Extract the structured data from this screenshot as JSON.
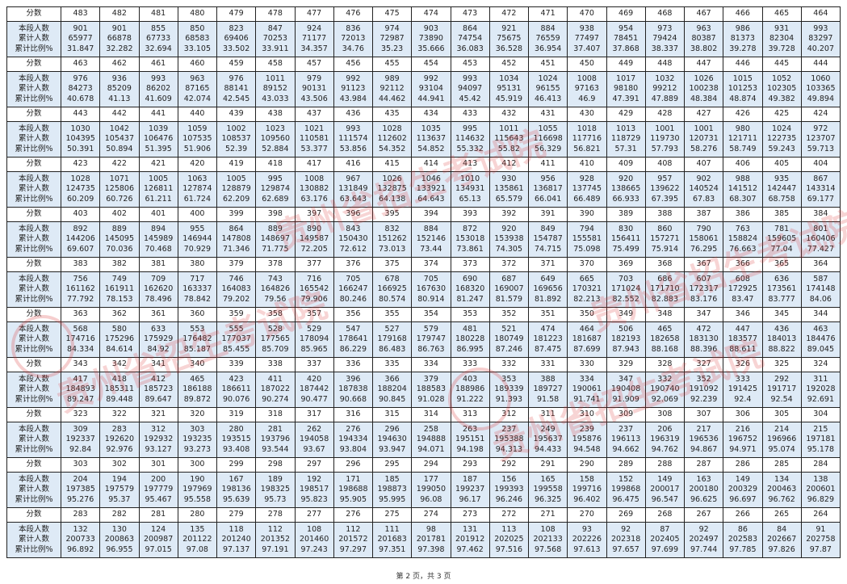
{
  "labels": {
    "score": "分数",
    "count": "本段人数",
    "cumulative": "累计人数",
    "ratio": "累计比例%"
  },
  "watermark": "贵州省招生考试院",
  "footer": "第 2 页，共 3 页",
  "blocks": [
    {
      "scores": [
        483,
        482,
        481,
        480,
        479,
        478,
        477,
        476,
        475,
        474,
        473,
        472,
        471,
        470,
        469,
        468,
        467,
        466,
        465,
        464
      ],
      "count": [
        901,
        901,
        855,
        850,
        823,
        847,
        924,
        836,
        974,
        903,
        864,
        921,
        884,
        938,
        954,
        973,
        963,
        986,
        931,
        993
      ],
      "cumulative": [
        65977,
        66878,
        67733,
        68583,
        69406,
        70253,
        71177,
        72013,
        72987,
        73890,
        74754,
        75675,
        76559,
        77497,
        78451,
        79424,
        80387,
        81373,
        82304,
        83297
      ],
      "ratio": [
        "31.847",
        "32.282",
        "32.694",
        "33.105",
        "33.502",
        "33.911",
        "34.357",
        "34.76",
        "35.23",
        "35.666",
        "36.083",
        "36.528",
        "36.954",
        "37.407",
        "37.868",
        "38.337",
        "38.802",
        "39.278",
        "39.728",
        "40.207"
      ]
    },
    {
      "scores": [
        463,
        462,
        461,
        460,
        459,
        458,
        457,
        456,
        455,
        454,
        453,
        452,
        451,
        450,
        449,
        448,
        447,
        446,
        445,
        444
      ],
      "count": [
        976,
        936,
        993,
        963,
        976,
        1011,
        979,
        992,
        989,
        992,
        993,
        1034,
        1024,
        1008,
        1017,
        1032,
        1026,
        1015,
        1052,
        1060
      ],
      "cumulative": [
        84273,
        85209,
        86202,
        87165,
        88141,
        89152,
        90131,
        91123,
        92112,
        93104,
        94097,
        95131,
        96155,
        97163,
        98180,
        99212,
        100238,
        101253,
        102305,
        103365
      ],
      "ratio": [
        "40.678",
        "41.13",
        "41.609",
        "42.074",
        "42.545",
        "43.033",
        "43.506",
        "43.984",
        "44.462",
        "44.941",
        "45.42",
        "45.919",
        "46.413",
        "46.9",
        "47.391",
        "47.889",
        "48.384",
        "48.874",
        "49.382",
        "49.894"
      ]
    },
    {
      "scores": [
        443,
        442,
        441,
        440,
        439,
        438,
        437,
        436,
        435,
        434,
        433,
        432,
        431,
        430,
        429,
        428,
        427,
        426,
        425,
        424
      ],
      "count": [
        1030,
        1042,
        1039,
        1059,
        1002,
        1023,
        1021,
        993,
        1028,
        1035,
        995,
        1011,
        1055,
        1018,
        1013,
        1001,
        1001,
        980,
        1024,
        972
      ],
      "cumulative": [
        104395,
        105437,
        106476,
        107535,
        108537,
        109560,
        110581,
        111574,
        112602,
        113637,
        114632,
        115643,
        116698,
        117716,
        118729,
        119730,
        120731,
        121711,
        122735,
        123707
      ],
      "ratio": [
        "50.391",
        "50.894",
        "51.395",
        "51.906",
        "52.39",
        "52.884",
        "53.377",
        "53.856",
        "54.352",
        "54.852",
        "55.332",
        "55.82",
        "56.329",
        "56.821",
        "57.31",
        "57.793",
        "58.276",
        "58.749",
        "59.243",
        "59.713"
      ]
    },
    {
      "scores": [
        423,
        422,
        421,
        420,
        419,
        418,
        417,
        416,
        415,
        414,
        413,
        412,
        411,
        410,
        409,
        408,
        407,
        406,
        405,
        404
      ],
      "count": [
        1028,
        1071,
        1005,
        1063,
        1005,
        995,
        1008,
        967,
        1026,
        1046,
        1010,
        930,
        956,
        928,
        920,
        957,
        902,
        988,
        935,
        867
      ],
      "cumulative": [
        124735,
        125806,
        126811,
        127874,
        128879,
        129874,
        130882,
        131849,
        132875,
        133921,
        134931,
        135861,
        136817,
        137745,
        138665,
        139622,
        140524,
        141512,
        142447,
        143314
      ],
      "ratio": [
        "60.209",
        "60.726",
        "61.211",
        "61.724",
        "62.209",
        "62.689",
        "63.176",
        "63.643",
        "64.138",
        "64.643",
        "65.13",
        "65.579",
        "66.041",
        "66.489",
        "66.933",
        "67.395",
        "67.83",
        "68.307",
        "68.758",
        "69.177"
      ]
    },
    {
      "scores": [
        403,
        402,
        401,
        400,
        399,
        398,
        397,
        396,
        395,
        394,
        393,
        392,
        391,
        390,
        389,
        388,
        387,
        386,
        385,
        384
      ],
      "count": [
        892,
        889,
        894,
        955,
        864,
        889,
        890,
        843,
        832,
        884,
        872,
        920,
        849,
        794,
        830,
        860,
        790,
        763,
        781,
        801
      ],
      "cumulative": [
        144206,
        145095,
        145989,
        146944,
        147808,
        148697,
        149587,
        150430,
        151262,
        152146,
        153018,
        153938,
        154787,
        155581,
        156411,
        157271,
        158061,
        158824,
        159605,
        160406
      ],
      "ratio": [
        "69.607",
        "70.036",
        "70.468",
        "70.929",
        "71.346",
        "71.775",
        "72.205",
        "72.612",
        "73.013",
        "73.44",
        "73.861",
        "74.305",
        "74.715",
        "75.098",
        "75.499",
        "75.914",
        "76.295",
        "76.663",
        "77.04",
        "77.427"
      ]
    },
    {
      "scores": [
        383,
        382,
        381,
        380,
        379,
        378,
        377,
        376,
        375,
        374,
        373,
        372,
        371,
        370,
        369,
        368,
        367,
        366,
        365,
        364
      ],
      "count": [
        756,
        749,
        709,
        717,
        746,
        743,
        716,
        705,
        678,
        705,
        690,
        687,
        649,
        665,
        703,
        686,
        607,
        608,
        636,
        587
      ],
      "cumulative": [
        161162,
        161911,
        162620,
        163337,
        164083,
        164826,
        165542,
        166247,
        166925,
        167630,
        168320,
        169007,
        169656,
        170321,
        171024,
        171710,
        172317,
        172925,
        173561,
        174148
      ],
      "ratio": [
        "77.792",
        "78.153",
        "78.496",
        "78.842",
        "79.202",
        "79.56",
        "79.906",
        "80.246",
        "80.574",
        "80.914",
        "81.247",
        "81.579",
        "81.892",
        "82.213",
        "82.552",
        "82.883",
        "83.176",
        "83.47",
        "83.777",
        "84.06"
      ]
    },
    {
      "scores": [
        363,
        362,
        361,
        360,
        359,
        358,
        357,
        356,
        355,
        354,
        353,
        352,
        351,
        350,
        349,
        348,
        347,
        346,
        345,
        344
      ],
      "count": [
        568,
        580,
        633,
        553,
        555,
        528,
        529,
        547,
        527,
        579,
        481,
        521,
        474,
        464,
        506,
        465,
        472,
        447,
        436,
        463
      ],
      "cumulative": [
        174716,
        175296,
        175929,
        176482,
        177037,
        177565,
        178094,
        178641,
        179168,
        179747,
        180228,
        180749,
        181223,
        181687,
        182193,
        182658,
        183130,
        183577,
        184013,
        184476
      ],
      "ratio": [
        "84.334",
        "84.614",
        "84.92",
        "85.187",
        "85.455",
        "85.709",
        "85.965",
        "86.229",
        "86.483",
        "86.763",
        "86.995",
        "87.246",
        "87.475",
        "87.699",
        "87.943",
        "88.168",
        "88.396",
        "88.611",
        "88.822",
        "89.045"
      ]
    },
    {
      "scores": [
        343,
        342,
        341,
        340,
        339,
        338,
        337,
        336,
        335,
        334,
        333,
        332,
        331,
        330,
        329,
        328,
        327,
        326,
        325,
        324
      ],
      "count": [
        417,
        418,
        412,
        465,
        423,
        411,
        420,
        396,
        366,
        379,
        403,
        353,
        388,
        334,
        347,
        332,
        352,
        333,
        292,
        311
      ],
      "cumulative": [
        184893,
        185311,
        185723,
        186188,
        186611,
        187022,
        187442,
        187838,
        188204,
        188583,
        188986,
        189339,
        189727,
        190061,
        190408,
        190740,
        191092,
        191425,
        191717,
        192028
      ],
      "ratio": [
        "89.247",
        "89.448",
        "89.647",
        "89.872",
        "90.076",
        "90.274",
        "90.477",
        "90.668",
        "90.845",
        "91.028",
        "91.222",
        "91.393",
        "91.58",
        "91.741",
        "91.909",
        "92.069",
        "92.239",
        "92.4",
        "92.54",
        "92.691"
      ]
    },
    {
      "scores": [
        323,
        322,
        321,
        320,
        319,
        318,
        317,
        316,
        315,
        314,
        313,
        312,
        311,
        310,
        309,
        308,
        307,
        306,
        305,
        304
      ],
      "count": [
        309,
        283,
        312,
        303,
        280,
        281,
        262,
        276,
        296,
        258,
        263,
        237,
        249,
        239,
        237,
        206,
        217,
        216,
        214,
        215
      ],
      "cumulative": [
        192337,
        192620,
        192932,
        193235,
        193515,
        193796,
        194058,
        194334,
        194630,
        194888,
        195151,
        195388,
        195637,
        195876,
        196113,
        196319,
        196536,
        196752,
        196966,
        197181
      ],
      "ratio": [
        "92.84",
        "92.976",
        "93.127",
        "93.273",
        "93.408",
        "93.544",
        "93.67",
        "93.804",
        "93.947",
        "94.071",
        "94.198",
        "94.313",
        "94.433",
        "94.548",
        "94.662",
        "94.762",
        "94.867",
        "94.971",
        "95.074",
        "95.178"
      ]
    },
    {
      "scores": [
        303,
        302,
        301,
        300,
        299,
        298,
        297,
        296,
        295,
        294,
        293,
        292,
        291,
        290,
        289,
        288,
        287,
        286,
        285,
        284
      ],
      "count": [
        204,
        194,
        200,
        190,
        167,
        189,
        192,
        171,
        185,
        177,
        187,
        156,
        165,
        158,
        152,
        149,
        163,
        149,
        134,
        138
      ],
      "cumulative": [
        197385,
        197579,
        197779,
        197969,
        198136,
        198325,
        198517,
        198688,
        198873,
        199050,
        199237,
        199393,
        199558,
        199716,
        199868,
        200017,
        200180,
        200329,
        200463,
        200601
      ],
      "ratio": [
        "95.276",
        "95.37",
        "95.467",
        "95.558",
        "95.639",
        "95.73",
        "95.823",
        "95.905",
        "95.995",
        "96.08",
        "96.17",
        "96.246",
        "96.325",
        "96.402",
        "96.475",
        "96.547",
        "96.625",
        "96.697",
        "96.762",
        "96.829"
      ]
    },
    {
      "scores": [
        283,
        282,
        281,
        280,
        279,
        278,
        277,
        276,
        275,
        274,
        273,
        272,
        271,
        270,
        269,
        268,
        267,
        266,
        265,
        264
      ],
      "count": [
        132,
        130,
        124,
        135,
        118,
        112,
        108,
        112,
        111,
        98,
        131,
        113,
        108,
        93,
        92,
        87,
        92,
        86,
        84,
        91
      ],
      "cumulative": [
        200733,
        200863,
        200987,
        201122,
        201240,
        201352,
        201460,
        201572,
        201683,
        201781,
        201912,
        202025,
        202133,
        202226,
        202318,
        202405,
        202497,
        202583,
        202667,
        202758
      ],
      "ratio": [
        "96.892",
        "96.955",
        "97.015",
        "97.08",
        "97.137",
        "97.191",
        "97.243",
        "97.297",
        "97.351",
        "97.398",
        "97.462",
        "97.516",
        "97.568",
        "97.613",
        "97.657",
        "97.699",
        "97.744",
        "97.785",
        "97.826",
        "97.87"
      ]
    }
  ]
}
